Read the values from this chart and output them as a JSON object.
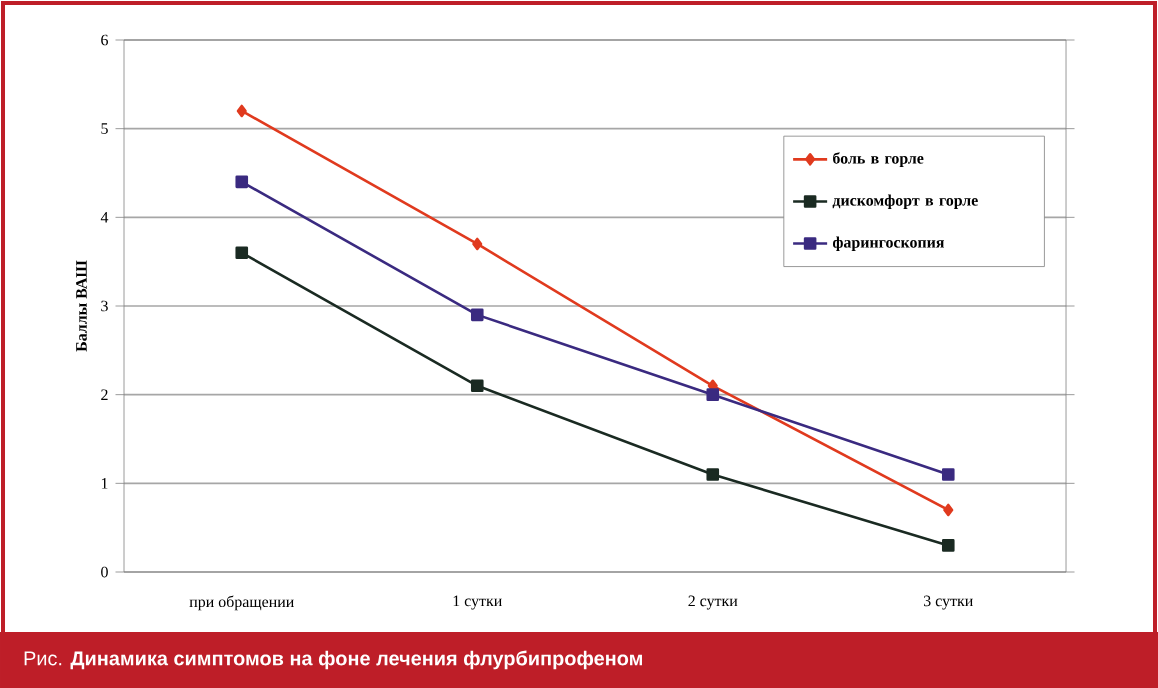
{
  "chart_data": {
    "type": "line",
    "ylabel": "Баллы ВАШ",
    "categories": [
      "при обращении",
      "1 сутки",
      "2 сутки",
      "3 сутки"
    ],
    "series": [
      {
        "name": "боль в горле",
        "color": "#e03a1e",
        "marker": "diamond",
        "values": [
          5.2,
          3.7,
          2.1,
          0.7
        ]
      },
      {
        "name": "дискомфорт в горле",
        "color": "#1a2a22",
        "marker": "square",
        "values": [
          3.6,
          2.1,
          1.1,
          0.3
        ]
      },
      {
        "name": "фарингоскопия",
        "color": "#3a2a80",
        "marker": "square",
        "values": [
          4.4,
          2.9,
          2.0,
          1.1
        ]
      }
    ],
    "ylim": [
      0,
      6
    ],
    "yticks": [
      0,
      1,
      2,
      3,
      4,
      5,
      6
    ],
    "grid": "y",
    "legend": "top right",
    "annotations": [
      "Рис. **Динамика симптомов на фоне лечения флурбипрофеном**"
    ]
  }
}
